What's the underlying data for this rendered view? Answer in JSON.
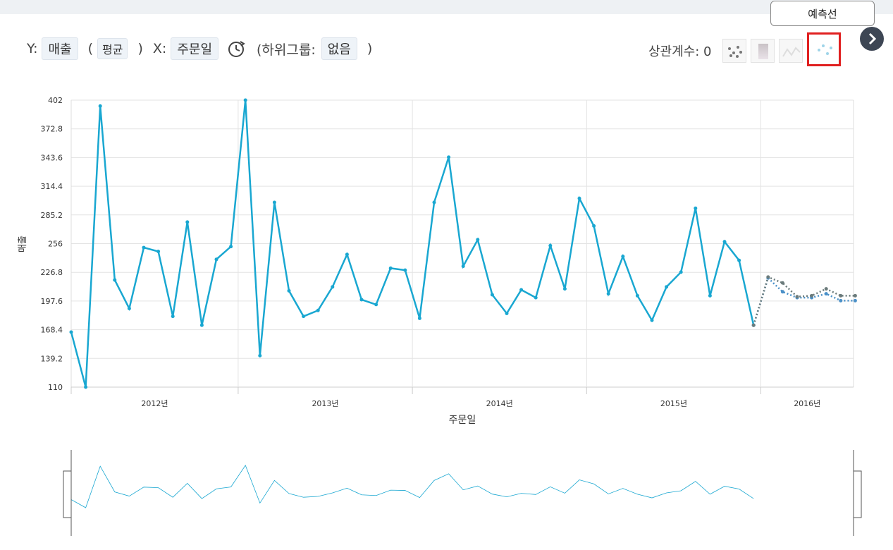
{
  "header": {
    "y_label": "Y:",
    "y_field": "매출",
    "aggregation": "평균",
    "x_label": "X:",
    "x_field": "주문일",
    "subgroup_label": "(하위그룹:",
    "subgroup_value": "없음",
    "subgroup_close": ")",
    "paren_open": "(",
    "paren_close": ")",
    "correlation": "상관계수: 0",
    "tooltip": "예측선"
  },
  "chart_types": [
    {
      "icon": "scatter-chart-icon"
    },
    {
      "icon": "histogram-chart-icon"
    },
    {
      "icon": "line-chart-icon"
    },
    {
      "icon": "forecast-line-icon",
      "active": true
    }
  ],
  "colors": {
    "series": "#19a7d1",
    "forecast": "#6b7b7b",
    "highlight": "#e02020"
  },
  "chart_data": {
    "type": "line",
    "xlabel": "주문일",
    "ylabel": "매출",
    "yticks": [
      "402",
      "372.8",
      "343.6",
      "314.4",
      "285.2",
      "256",
      "226.8",
      "197.6",
      "168.4",
      "139.2",
      "110"
    ],
    "ylim": [
      110,
      402
    ],
    "year_labels": [
      "2012년",
      "2013년",
      "2014년",
      "2015년",
      "2016년"
    ],
    "grid": true,
    "series": [
      {
        "values": [
          166,
          110,
          396,
          219,
          190,
          252,
          248,
          182,
          278,
          173,
          240,
          253,
          402,
          142,
          298,
          208,
          182,
          188,
          212,
          245,
          199,
          194,
          231,
          229,
          180,
          298,
          344,
          233,
          260,
          204,
          185,
          209,
          201,
          254,
          210,
          302,
          274,
          205,
          243,
          203,
          178,
          212,
          227,
          292,
          203,
          258,
          239,
          173
        ]
      },
      {
        "values": [
          173,
          221,
          207,
          201,
          201,
          205,
          198,
          198
        ]
      },
      {
        "values": [
          173,
          222,
          216,
          202,
          203,
          210,
          203,
          203
        ]
      }
    ]
  }
}
